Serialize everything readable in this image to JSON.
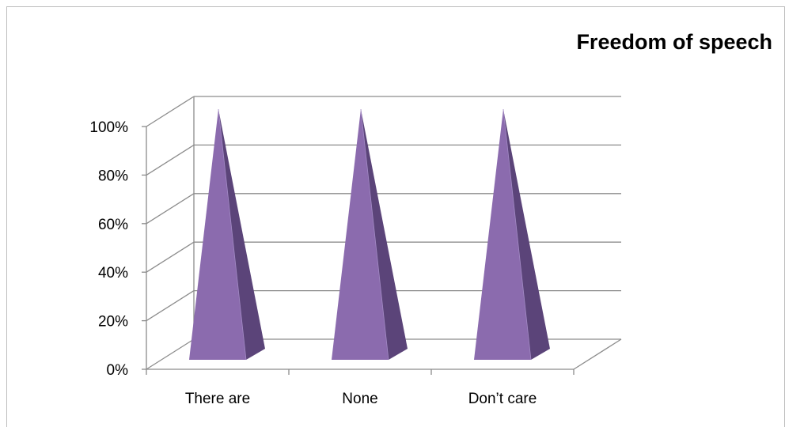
{
  "chart_data": {
    "type": "bar",
    "bar_shape": "3d-pyramid",
    "title": "Freedom of speech",
    "categories": [
      "There are",
      "None",
      "Don’t care"
    ],
    "values": [
      100,
      100,
      100
    ],
    "ylim": [
      0,
      100
    ],
    "y_ticks": [
      "0%",
      "20%",
      "40%",
      "60%",
      "80%",
      "100%"
    ],
    "xlabel": "",
    "ylabel": "",
    "grid": true,
    "legend": "none",
    "colors": {
      "pyramid_front": "#8B6BAE",
      "pyramid_side": "#5B4479",
      "pyramid_edge": "#A28AC4",
      "gridline": "#8c8c8c",
      "frame": "#bdbdbd"
    }
  }
}
